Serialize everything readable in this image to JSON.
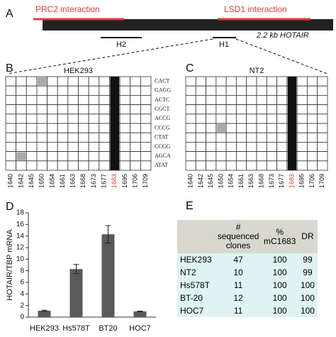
{
  "figure_a": {
    "label": "A",
    "prc2": "PRC2 interaction",
    "lsd1": "LSD1 interaction",
    "h2": "H2",
    "h1": "H1",
    "gene": "2.2 kb HOTAIR",
    "accent_color": "#e8393a"
  },
  "grids": [
    {
      "label": "B",
      "title": "HEK293",
      "row_count": 10,
      "row_labels": [
        "CACT",
        "GAGG",
        "ACTC",
        "CGCT",
        "ACCG",
        "CCCG",
        "CTAT",
        "CCGG",
        "AGCA",
        "ATAT"
      ],
      "columns": [
        1640,
        1642,
        1645,
        1650,
        1654,
        1661,
        1663,
        1668,
        1673,
        1677,
        1683,
        1695,
        1706,
        1709
      ],
      "dark_column": 10,
      "gray_cells": [
        [
          0,
          3
        ],
        [
          8,
          1
        ]
      ]
    },
    {
      "label": "C",
      "title": "NT2",
      "row_count": 10,
      "columns": [
        1640,
        1642,
        1645,
        1650,
        1654,
        1661,
        1663,
        1668,
        1673,
        1677,
        1683,
        1695,
        1706,
        1709
      ],
      "dark_column": 10,
      "gray_cells": [
        [
          5,
          3
        ]
      ]
    }
  ],
  "chart_data": {
    "type": "bar",
    "panel_label": "D",
    "y_label": "HOTAIR/TBP mRNA",
    "categories": [
      "HEK293",
      "Hs578T",
      "BT20",
      "HOC7"
    ],
    "values": [
      1.1,
      8.3,
      14.3,
      1.0
    ],
    "errors": [
      0.1,
      0.8,
      1.5,
      0.05
    ],
    "color": "#5a5a5a",
    "ylim": [
      0,
      18
    ],
    "yticks": [
      0,
      2,
      4,
      6,
      8,
      10,
      12,
      14,
      16,
      18
    ]
  },
  "table": {
    "label": "E",
    "header": [
      "# sequenced clones",
      "% mC1683",
      "DR"
    ],
    "rows": [
      [
        "HEK293",
        47,
        100,
        99
      ],
      [
        "NT2",
        10,
        100,
        99
      ],
      [
        "Hs578T",
        11,
        100,
        100
      ],
      [
        "BT-20",
        12,
        100,
        100
      ],
      [
        "HOC7",
        11,
        100,
        100
      ]
    ]
  }
}
